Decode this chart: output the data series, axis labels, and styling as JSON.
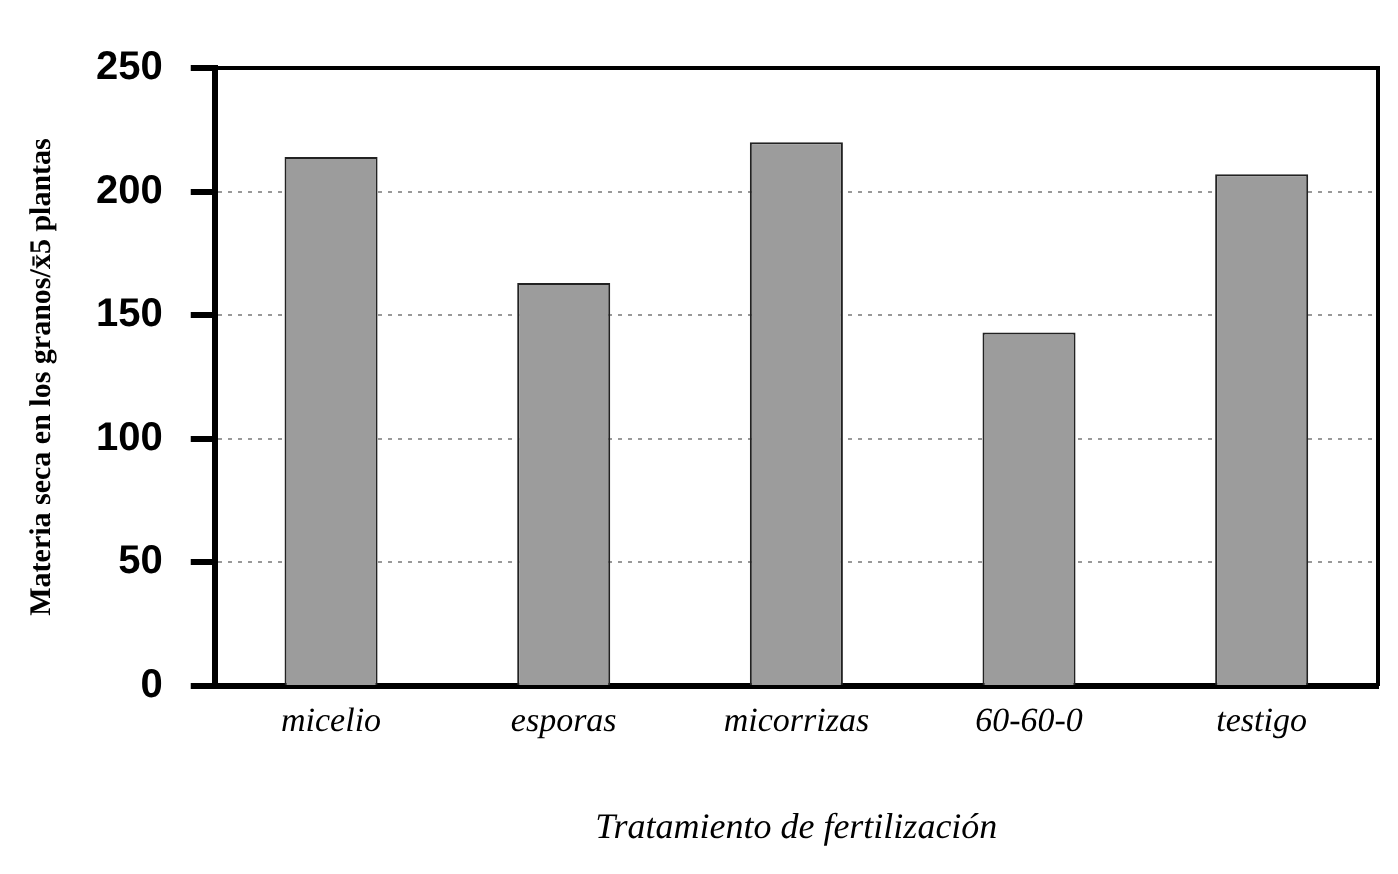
{
  "chart_data": {
    "type": "bar",
    "xlabel": "Tratamiento de fertilización",
    "ylabel": "Materia seca en los granos/x̄5 plantas",
    "categories": [
      "micelio",
      "esporas",
      "micorrizas",
      "60-60-0",
      "testigo"
    ],
    "values": [
      214,
      163,
      220,
      143,
      207
    ],
    "color": "#9c9c9c",
    "ylim": [
      0,
      250
    ],
    "yticks": [
      0,
      50,
      100,
      150,
      200,
      250
    ],
    "grid": "y",
    "legend": false
  }
}
